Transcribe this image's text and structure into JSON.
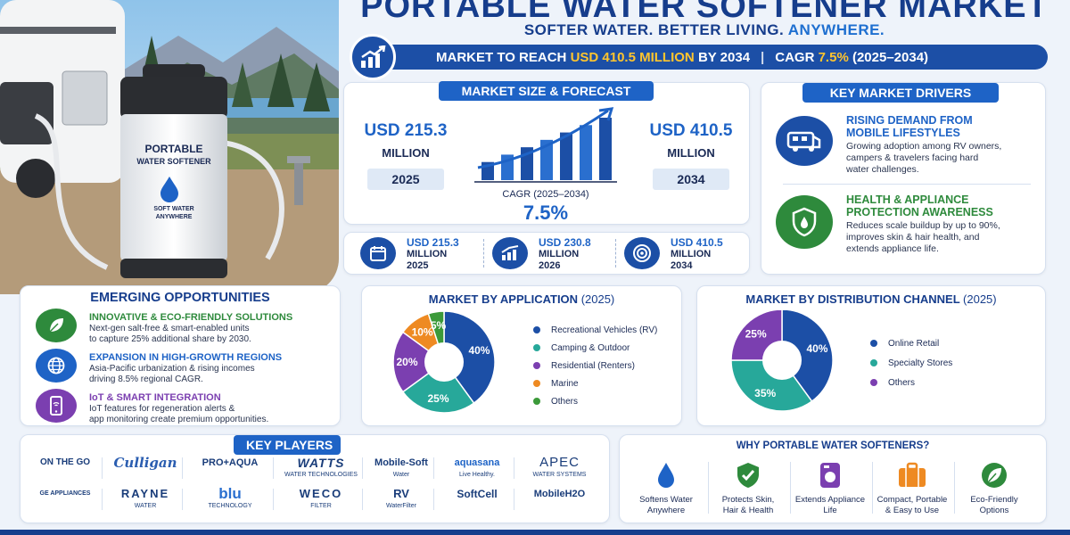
{
  "header": {
    "title": "PORTABLE WATER SOFTENER MARKET",
    "subtitle_a": "SOFTER WATER. BETTER LIVING.",
    "subtitle_b": "ANYWHERE.",
    "banner_a": "MARKET TO REACH",
    "banner_val": "USD 410.5 MILLION",
    "banner_b": "BY 2034",
    "banner_sep": "|",
    "banner_c": "CAGR",
    "banner_cagr": "7.5%",
    "banner_d": "(2025–2034)"
  },
  "product": {
    "line1": "PORTABLE",
    "line2": "WATER SOFTENER",
    "tag1": "SOFT WATER",
    "tag2": "ANYWHERE"
  },
  "forecast": {
    "title": "MARKET SIZE & FORECAST",
    "left_val": "USD 215.3",
    "left_unit": "MILLION",
    "left_year": "2025",
    "right_val": "USD 410.5",
    "right_unit": "MILLION",
    "right_year": "2034",
    "cagr_label": "CAGR (2025–2034)",
    "cagr_value": "7.5%",
    "bars": [
      1,
      2,
      3,
      4,
      5,
      6,
      7
    ]
  },
  "timeline": [
    {
      "val": "USD 215.3",
      "unit": "MILLION",
      "year": "2025",
      "icon": "calendar-icon"
    },
    {
      "val": "USD 230.8",
      "unit": "MILLION",
      "year": "2026",
      "icon": "growth-chart-icon"
    },
    {
      "val": "USD 410.5",
      "unit": "MILLION",
      "year": "2034",
      "icon": "target-icon"
    }
  ],
  "drivers": {
    "title": "KEY MARKET DRIVERS",
    "items": [
      {
        "t1": "RISING DEMAND FROM",
        "t2": "MOBILE LIFESTYLES",
        "d1": "Growing adoption among RV owners,",
        "d2": "campers & travelers facing hard",
        "d3": "water challenges.",
        "icon": "rv-icon"
      },
      {
        "t1": "HEALTH & APPLIANCE",
        "t2": "PROTECTION AWARENESS",
        "d1": "Reduces scale buildup by up to 90%,",
        "d2": "improves skin & hair health, and",
        "d3": "extends appliance life.",
        "icon": "shield-drop-icon"
      }
    ]
  },
  "opportunities": {
    "title": "EMERGING OPPORTUNITIES",
    "items": [
      {
        "t": "INNOVATIVE & ECO-FRIENDLY SOLUTIONS",
        "d1": "Next-gen salt-free & smart-enabled units",
        "d2": "to capture 25% additional share by 2030.",
        "color": "#2e8a3c",
        "icon": "leaf-icon"
      },
      {
        "t": "EXPANSION IN HIGH-GROWTH REGIONS",
        "d1": "Asia-Pacific urbanization & rising incomes",
        "d2": "driving 8.5% regional CAGR.",
        "color": "#1e63c6",
        "icon": "globe-icon"
      },
      {
        "t": "IoT & SMART INTEGRATION",
        "d1": "IoT features for regeneration alerts &",
        "d2": "app monitoring create premium opportunities.",
        "color": "#7b3fb0",
        "icon": "smartphone-icon"
      }
    ]
  },
  "chart_data": [
    {
      "type": "pie",
      "title": "MARKET BY APPLICATION",
      "title_year": "(2025)",
      "categories": [
        "Recreational Vehicles (RV)",
        "Camping & Outdoor",
        "Residential (Renters)",
        "Marine",
        "Others"
      ],
      "values": [
        40,
        25,
        20,
        10,
        5
      ],
      "labels": [
        "40%",
        "25%",
        "20%",
        "10%",
        "5%"
      ],
      "colors": [
        "#1c4fa6",
        "#27a89a",
        "#7b3fb0",
        "#ee8a22",
        "#3c9a3a"
      ]
    },
    {
      "type": "pie",
      "title": "MARKET BY DISTRIBUTION CHANNEL",
      "title_year": "(2025)",
      "categories": [
        "Online Retail",
        "Specialty Stores",
        "Others"
      ],
      "values": [
        40,
        35,
        25
      ],
      "labels": [
        "40%",
        "35%",
        "25%"
      ],
      "colors": [
        "#1c4fa6",
        "#27a89a",
        "#7b3fb0"
      ]
    }
  ],
  "players": {
    "title": "KEY PLAYERS",
    "row1": [
      "ON THE GO",
      "Culligan",
      "PRO+AQUA",
      "WATTS",
      "Mobile-Soft",
      "aquasana",
      "APEC"
    ],
    "row1_sub": [
      "",
      "",
      "",
      "WATER TECHNOLOGIES",
      "Water",
      "Live Healthy.",
      "WATER SYSTEMS"
    ],
    "row2": [
      "GE APPLIANCES",
      "RAYNE",
      "blu",
      "WECO",
      "RV",
      "SoftCell",
      "MobileH2O"
    ],
    "row2_sub": [
      "",
      "WATER",
      "TECHNOLOGY",
      "FILTER",
      "WaterFilter",
      "",
      ""
    ]
  },
  "why": {
    "title": "WHY PORTABLE WATER SOFTENERS?",
    "items": [
      {
        "a": "Softens Water",
        "b": "Anywhere",
        "color": "#1e63c6",
        "icon": "water-drop-icon"
      },
      {
        "a": "Protects Skin,",
        "b": "Hair & Health",
        "color": "#2e8a3c",
        "icon": "shield-check-icon"
      },
      {
        "a": "Extends Appliance",
        "b": "Life",
        "color": "#7b3fb0",
        "icon": "appliance-icon"
      },
      {
        "a": "Compact, Portable",
        "b": "& Easy to Use",
        "color": "#ee8a22",
        "icon": "suitcase-icon"
      },
      {
        "a": "Eco-Friendly",
        "b": "Options",
        "color": "#2e8a3c",
        "icon": "leaf-icon"
      }
    ]
  }
}
